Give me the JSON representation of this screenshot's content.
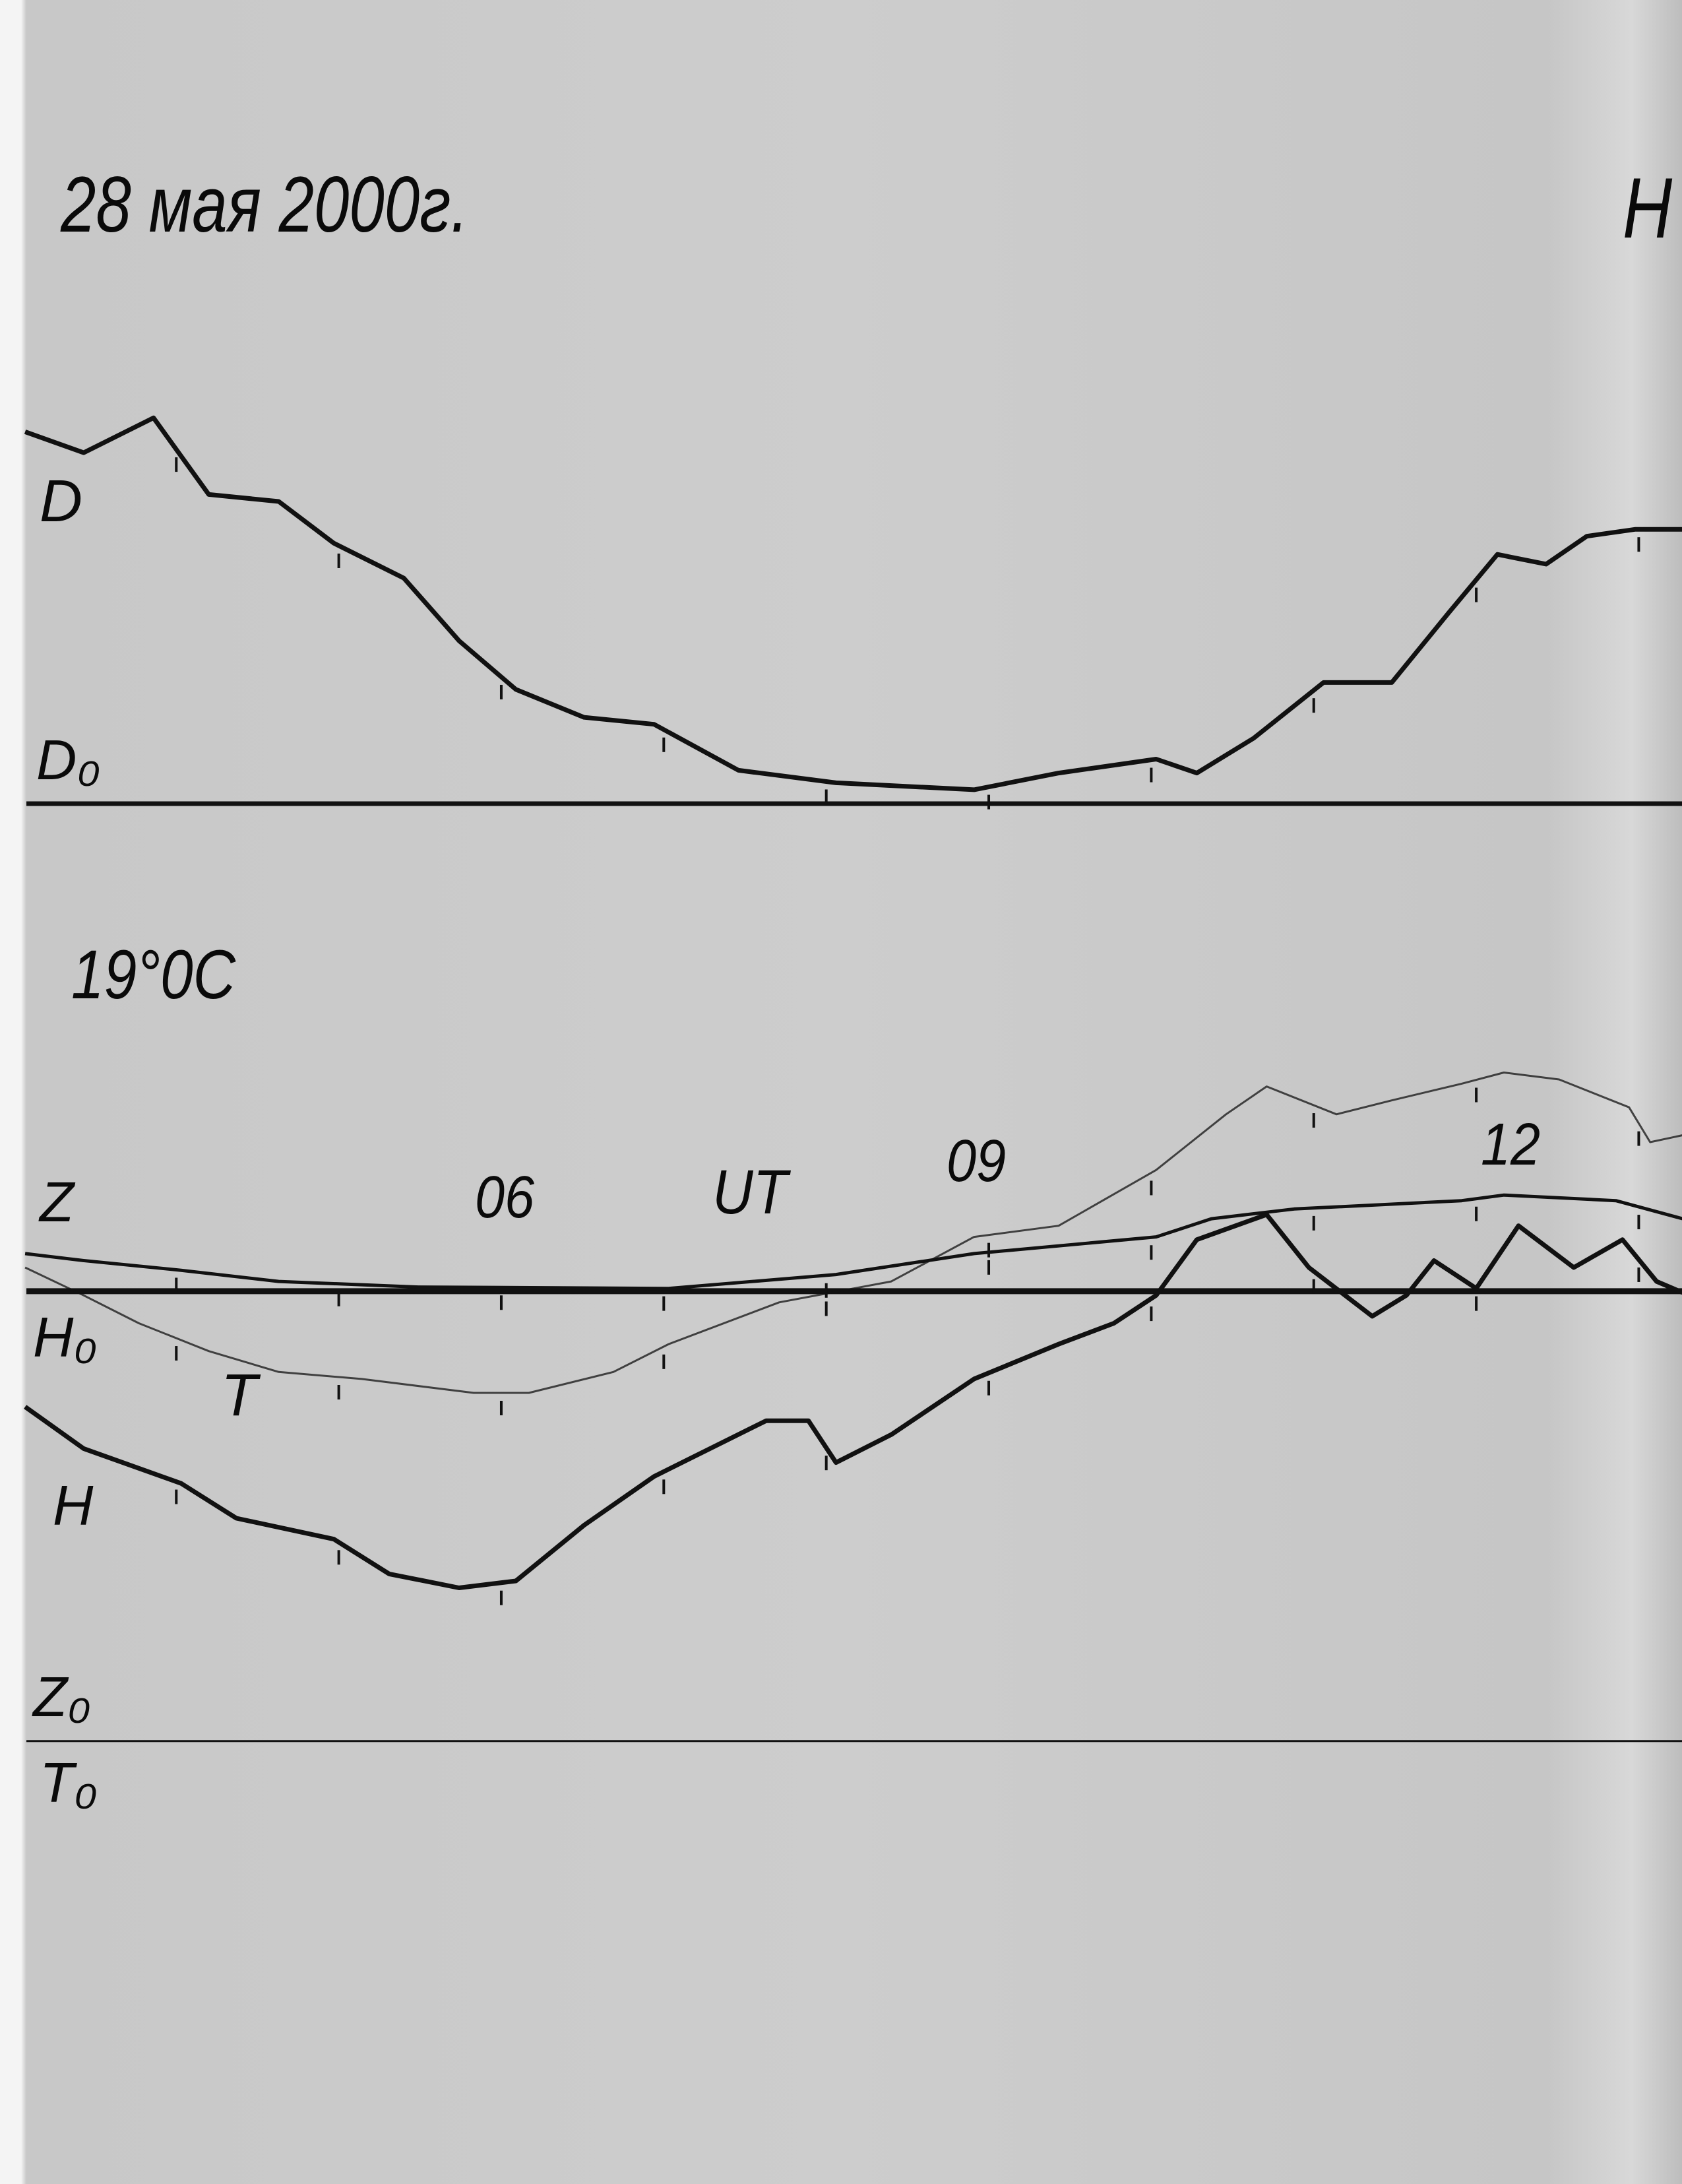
{
  "chart_data": {
    "type": "line",
    "title": "28 мая 2000г.",
    "title_right_fragment": "H",
    "temperature_note": "19°0C",
    "xlabel": "UT",
    "x_tick_labels": [
      {
        "hour": 6,
        "label": "06"
      },
      {
        "hour": 9,
        "label": "09"
      },
      {
        "hour": 12,
        "label": "12"
      }
    ],
    "xlim": [
      3.07,
      13.27
    ],
    "hour_marks": [
      4,
      5,
      6,
      7,
      8,
      9,
      10,
      11,
      12,
      13
    ],
    "grid": false,
    "colors": {
      "trace": "#111111",
      "paper": "#cbcbcb"
    },
    "baselines": [
      {
        "name": "D0",
        "label": "D₀"
      },
      {
        "name": "H0",
        "label": "H₀"
      },
      {
        "name": "Z0T0",
        "label_top": "Z₀",
        "label_bottom": "T₀"
      }
    ],
    "series": [
      {
        "name": "D",
        "label": "D",
        "baseline": "D0",
        "weight": "thick",
        "x": [
          3.07,
          3.43,
          3.86,
          4.2,
          4.63,
          4.97,
          5.4,
          5.74,
          6.09,
          6.51,
          6.94,
          7.46,
          8.06,
          8.91,
          9.43,
          10.03,
          10.28,
          10.63,
          11.06,
          11.48,
          11.83,
          12.13,
          12.43,
          12.68,
          12.98,
          13.27
        ],
        "y": [
          26.7,
          25.2,
          27.7,
          22.2,
          21.7,
          18.7,
          16.2,
          11.7,
          8.2,
          6.2,
          5.7,
          2.4,
          1.5,
          1.0,
          2.2,
          3.2,
          2.2,
          4.7,
          8.7,
          8.7,
          13.7,
          17.9,
          17.2,
          19.2,
          19.7,
          19.7
        ]
      },
      {
        "name": "Z",
        "label": "Z",
        "baseline": "H0",
        "weight": "medium",
        "x": [
          3.07,
          3.43,
          4.03,
          4.63,
          5.49,
          7.03,
          8.06,
          8.91,
          10.03,
          10.37,
          10.88,
          11.91,
          12.17,
          12.86,
          13.27
        ],
        "y": [
          2.7,
          2.2,
          1.5,
          0.7,
          0.3,
          0.2,
          1.2,
          2.7,
          3.9,
          5.2,
          5.9,
          6.5,
          6.9,
          6.5,
          5.2
        ]
      },
      {
        "name": "T",
        "label": "T",
        "baseline": "H0",
        "weight": "thin",
        "x": [
          3.07,
          3.43,
          3.77,
          4.2,
          4.63,
          5.14,
          5.83,
          6.17,
          6.69,
          7.03,
          7.71,
          8.4,
          8.91,
          9.43,
          10.03,
          10.46,
          10.71,
          11.14,
          11.48,
          11.91,
          12.17,
          12.51,
          12.94,
          13.07,
          13.27
        ],
        "y": [
          1.7,
          -0.3,
          -2.3,
          -4.3,
          -5.8,
          -6.3,
          -7.3,
          -7.3,
          -5.8,
          -3.8,
          -0.8,
          0.7,
          3.9,
          4.7,
          8.7,
          12.7,
          14.7,
          12.7,
          13.7,
          14.9,
          15.7,
          15.2,
          13.2,
          10.7,
          11.2
        ]
      },
      {
        "name": "H",
        "label": "H",
        "baseline": "H0",
        "weight": "thick",
        "x": [
          3.07,
          3.43,
          4.03,
          4.37,
          4.97,
          5.31,
          5.74,
          6.09,
          6.51,
          6.94,
          7.63,
          7.89,
          8.06,
          8.4,
          8.91,
          9.43,
          9.77,
          10.03,
          10.28,
          10.71,
          10.97,
          11.36,
          11.57,
          11.74,
          12.0,
          12.26,
          12.6,
          12.9,
          13.11,
          13.27
        ],
        "y": [
          -8.3,
          -11.3,
          -13.8,
          -16.3,
          -17.8,
          -20.3,
          -21.3,
          -20.8,
          -16.8,
          -13.3,
          -9.3,
          -9.3,
          -12.3,
          -10.3,
          -6.3,
          -3.8,
          -2.3,
          -0.3,
          3.7,
          5.5,
          1.7,
          -1.8,
          -0.3,
          2.2,
          0.2,
          4.7,
          1.7,
          3.7,
          0.7,
          -0.1
        ]
      }
    ]
  }
}
